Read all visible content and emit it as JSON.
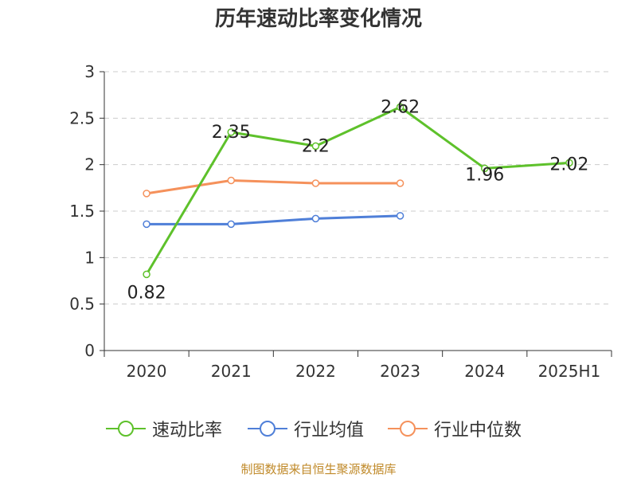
{
  "chart_data": {
    "type": "line",
    "title": "历年速动比率变化情况",
    "categories": [
      "2020",
      "2021",
      "2022",
      "2023",
      "2024",
      "2025H1"
    ],
    "ylim": [
      0,
      3
    ],
    "yticks": [
      "0",
      "0.5",
      "1",
      "1.5",
      "2",
      "2.5",
      "3"
    ],
    "grid": true,
    "legend_position": "bottom",
    "series": [
      {
        "name": "速动比率",
        "color": "#5ec12b",
        "values": [
          0.82,
          2.35,
          2.2,
          2.62,
          1.96,
          2.02
        ],
        "labels": [
          "0.82",
          "2.35",
          "2.2",
          "2.62",
          "1.96",
          "2.02"
        ]
      },
      {
        "name": "行业均值",
        "color": "#4f7fd8",
        "values": [
          1.36,
          1.36,
          1.42,
          1.45,
          null,
          null
        ]
      },
      {
        "name": "行业中位数",
        "color": "#f5915b",
        "values": [
          1.69,
          1.83,
          1.8,
          1.8,
          null,
          null
        ]
      }
    ]
  },
  "source": "制图数据来自恒生聚源数据库"
}
